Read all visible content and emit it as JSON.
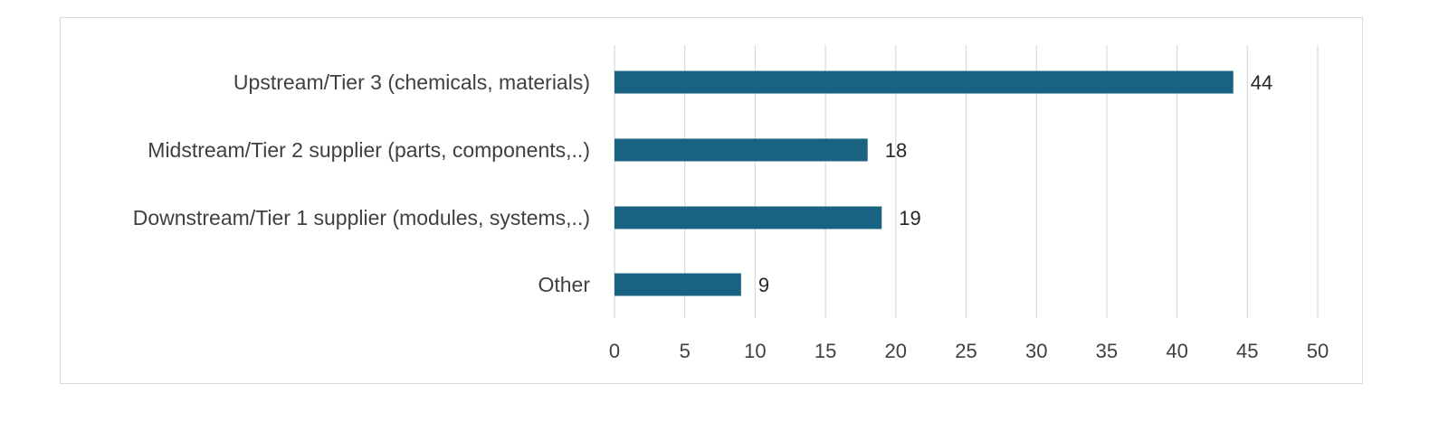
{
  "chart_data": {
    "type": "bar",
    "orientation": "horizontal",
    "title": "",
    "xlabel": "",
    "ylabel": "",
    "categories": [
      "Upstream/Tier 3 (chemicals, materials)",
      "Midstream/Tier 2 supplier (parts, components,..)",
      "Downstream/Tier 1 supplier (modules, systems,..)",
      "Other"
    ],
    "values": [
      44,
      18,
      19,
      9
    ],
    "xlim": [
      0,
      50
    ],
    "xticks": [
      0,
      5,
      10,
      15,
      20,
      25,
      30,
      35,
      40,
      45,
      50
    ],
    "grid": "vertical",
    "data_labels": true,
    "legend": "none",
    "bar_color": "#1a6282"
  }
}
